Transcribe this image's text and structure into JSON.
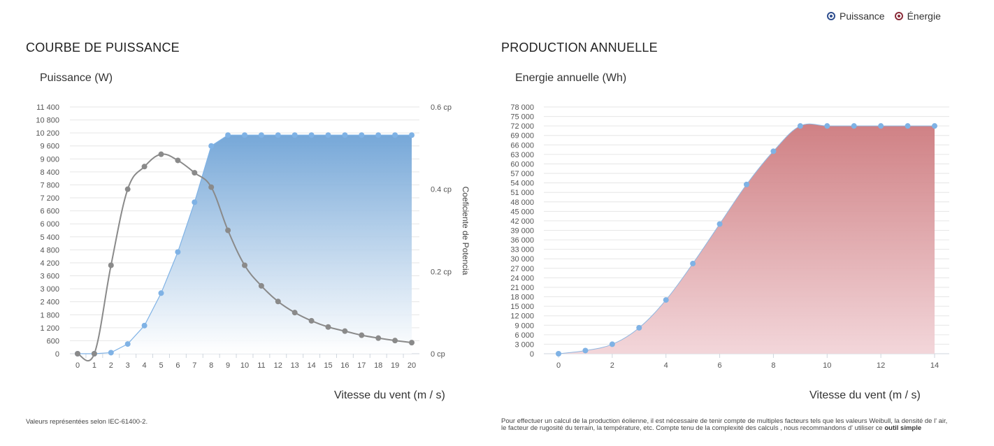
{
  "legend": {
    "items": [
      {
        "label": "Puissance",
        "color": "#2f4f8f",
        "icon": "target-icon"
      },
      {
        "label": "Énergie",
        "color": "#8b2d3a",
        "icon": "target-icon"
      }
    ]
  },
  "left": {
    "section_title": "COURBE DE PUISSANCE",
    "footnote": "Valeurs représentées selon IEC-61400-2."
  },
  "right": {
    "section_title": "PRODUCTION ANNUELLE",
    "footnote_text": "Pour effectuer un calcul de la production éolienne, il est nécessaire de tenir compte de multiples facteurs tels que les valeurs Weibull, la densité de l' air, le facteur de rugosité du terrain, la température, etc. Compte tenu de la complexité des calculs , nous recommandons d' utiliser ce",
    "footnote_link": "outil simple"
  },
  "chart_data": [
    {
      "type": "area",
      "title": "Puissance (W)",
      "xlabel": "Vitesse du vent (m / s)",
      "ylabel": "",
      "y2label": "Coeficiente de Potencia",
      "x": [
        0,
        1,
        2,
        3,
        4,
        5,
        6,
        7,
        8,
        9,
        10,
        11,
        12,
        13,
        14,
        15,
        16,
        17,
        18,
        19,
        20
      ],
      "xlim": [
        0,
        20
      ],
      "ylim": [
        0,
        11400
      ],
      "y_ticks": [
        0,
        600,
        1200,
        1800,
        2400,
        3000,
        3600,
        4200,
        4800,
        5400,
        6000,
        6600,
        7200,
        7800,
        8400,
        9000,
        9600,
        10200,
        10800,
        11400
      ],
      "y_tick_labels": [
        "0",
        "600",
        "1 200",
        "1 800",
        "2 400",
        "3 000",
        "3 600",
        "4 200",
        "4 800",
        "5 400",
        "6 000",
        "6 600",
        "7 200",
        "7 800",
        "8 400",
        "9 000",
        "9 600",
        "10 200",
        "10 800",
        "11 400"
      ],
      "y2lim": [
        0,
        0.6
      ],
      "y2_ticks": [
        0,
        0.2,
        0.4,
        0.6
      ],
      "y2_tick_labels": [
        "0 cp",
        "0.2 cp",
        "0.4 cp",
        "0.6 cp"
      ],
      "grid": true,
      "series": [
        {
          "name": "Puissance",
          "axis": "left",
          "color": "#7fb2e5",
          "values": [
            0,
            0,
            50,
            450,
            1300,
            2800,
            4700,
            7000,
            9600,
            10100,
            10100,
            10100,
            10100,
            10100,
            10100,
            10100,
            10100,
            10100,
            10100,
            10100,
            10100
          ]
        },
        {
          "name": "Coeficiente de Potencia",
          "axis": "right",
          "color": "#8a8a8a",
          "values": [
            0,
            0,
            0.215,
            0.4,
            0.455,
            0.485,
            0.47,
            0.44,
            0.405,
            0.3,
            0.215,
            0.165,
            0.127,
            0.1,
            0.08,
            0.065,
            0.055,
            0.045,
            0.038,
            0.032,
            0.027
          ]
        }
      ]
    },
    {
      "type": "area",
      "title": "Energie annuelle (Wh)",
      "xlabel": "Vitesse du vent (m / s)",
      "ylabel": "",
      "x": [
        0,
        1,
        2,
        3,
        4,
        5,
        6,
        7,
        8,
        9,
        10,
        11,
        12,
        13,
        14
      ],
      "x_ticks": [
        0,
        2,
        4,
        6,
        8,
        10,
        12,
        14
      ],
      "xlim": [
        0,
        14
      ],
      "ylim": [
        0,
        78000
      ],
      "y_ticks": [
        0,
        3000,
        6000,
        9000,
        12000,
        15000,
        18000,
        21000,
        24000,
        27000,
        30000,
        33000,
        36000,
        39000,
        42000,
        45000,
        48000,
        51000,
        54000,
        57000,
        60000,
        63000,
        66000,
        69000,
        72000,
        75000,
        78000
      ],
      "y_tick_labels": [
        "0",
        "3 000",
        "6 000",
        "9 000",
        "12 000",
        "15 000",
        "18 000",
        "21 000",
        "24 000",
        "27 000",
        "30 000",
        "33 000",
        "36 000",
        "39 000",
        "42 000",
        "45 000",
        "48 000",
        "51 000",
        "54 000",
        "57 000",
        "60 000",
        "63 000",
        "66 000",
        "69 000",
        "72 000",
        "75 000",
        "78 000"
      ],
      "grid": true,
      "series": [
        {
          "name": "Énergie",
          "axis": "left",
          "color": "#d08484",
          "marker_color": "#7fb2e5",
          "values": [
            0,
            1000,
            3000,
            8200,
            17000,
            28500,
            41000,
            53500,
            64000,
            72000,
            72000,
            72000,
            72000,
            72000,
            72000
          ]
        }
      ]
    }
  ]
}
